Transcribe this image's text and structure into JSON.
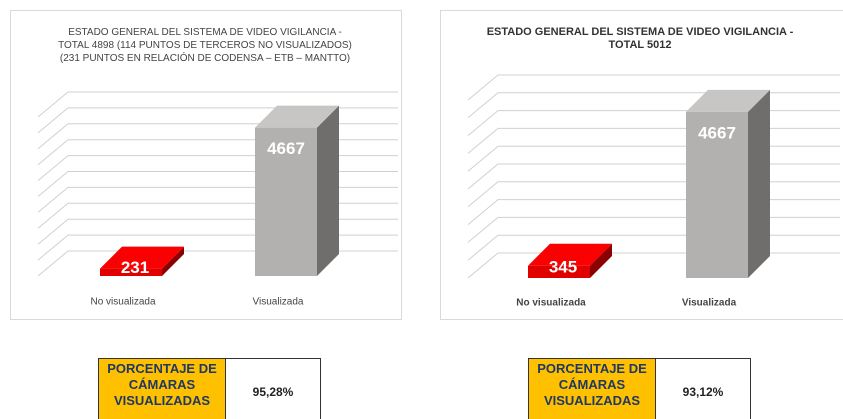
{
  "chart_data": [
    {
      "type": "bar3d",
      "title": "ESTADO GENERAL DEL SISTEMA DE VIDEO VIGILANCIA - TOTAL 4898 (114 PUNTOS DE TERCEROS NO VISUALIZADOS) (231 PUNTOS EN RELACIÓN DE CODENSA – ETB – MANTTO)",
      "categories": [
        "No visualizada",
        "Visualizada"
      ],
      "values": [
        231,
        4667
      ],
      "colors": [
        "#e00000",
        "#b3b1b0"
      ],
      "ylim": [
        0,
        5000
      ],
      "yticks": [
        0,
        500,
        1000,
        1500,
        2000,
        2500,
        3000,
        3500,
        4000,
        4500,
        5000
      ],
      "grid": true
    },
    {
      "type": "bar3d",
      "title": "ESTADO GENERAL DEL SISTEMA DE VIDEO VIGILANCIA - TOTAL 5012",
      "categories": [
        "No visualizada",
        "Visualizada"
      ],
      "values": [
        345,
        4667
      ],
      "colors": [
        "#e00000",
        "#b3b1b0"
      ],
      "ylim": [
        0,
        5000
      ],
      "yticks": [
        0,
        500,
        1000,
        1500,
        2000,
        2500,
        3000,
        3500,
        4000,
        4500,
        5000
      ],
      "grid": true
    }
  ],
  "tables": [
    {
      "rows": [
        [
          "PORCENTAJE DE CÁMARAS VISUALIZADAS",
          "95,28%"
        ]
      ]
    },
    {
      "rows": [
        [
          "PORCENTAJE DE CÁMARAS VISUALIZADAS",
          "93,12%"
        ]
      ]
    }
  ]
}
